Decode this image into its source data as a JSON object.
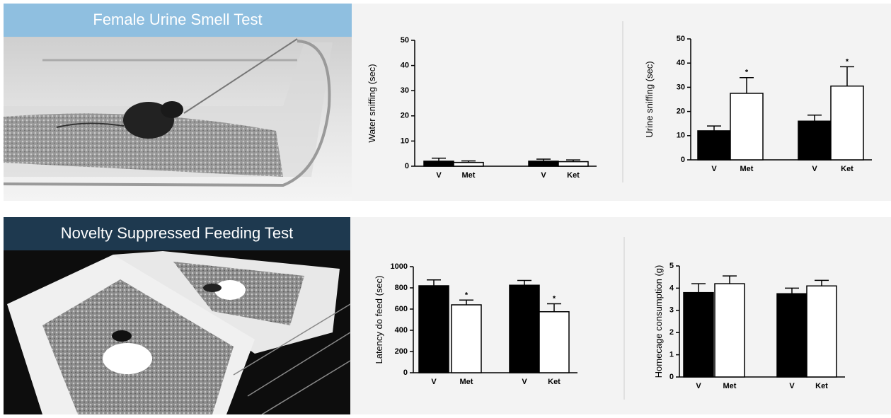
{
  "panels": [
    {
      "header": "Female Urine Smell Test"
    },
    {
      "header": "Novelty Suppressed Feeding Test"
    }
  ],
  "chart_data": [
    {
      "type": "bar",
      "ylabel": "Water sniffing (sec)",
      "categories": [
        "V",
        "Met",
        "V",
        "Ket"
      ],
      "values": [
        2,
        1.5,
        2,
        1.8
      ],
      "errors": [
        1.2,
        0.6,
        0.8,
        0.7
      ],
      "colors": [
        "#000000",
        "#ffffff",
        "#000000",
        "#ffffff"
      ],
      "significance": [
        null,
        null,
        null,
        null
      ],
      "ylim": [
        0,
        50
      ],
      "yticks": [
        0,
        10,
        20,
        30,
        40,
        50
      ]
    },
    {
      "type": "bar",
      "ylabel": "Urine sniffing (sec)",
      "categories": [
        "V",
        "Met",
        "V",
        "Ket"
      ],
      "values": [
        12,
        27.5,
        16,
        30.5
      ],
      "errors": [
        2,
        6.5,
        2.5,
        8
      ],
      "colors": [
        "#000000",
        "#ffffff",
        "#000000",
        "#ffffff"
      ],
      "significance": [
        null,
        "*",
        null,
        "*"
      ],
      "ylim": [
        0,
        50
      ],
      "yticks": [
        0,
        10,
        20,
        30,
        40,
        50
      ]
    },
    {
      "type": "bar",
      "ylabel": "Latency do feed (sec)",
      "categories": [
        "V",
        "Met",
        "V",
        "Ket"
      ],
      "values": [
        820,
        640,
        825,
        575
      ],
      "errors": [
        55,
        45,
        45,
        75
      ],
      "colors": [
        "#000000",
        "#ffffff",
        "#000000",
        "#ffffff"
      ],
      "significance": [
        null,
        "*",
        null,
        "*"
      ],
      "ylim": [
        0,
        1000
      ],
      "yticks": [
        0,
        200,
        400,
        600,
        800,
        1000
      ]
    },
    {
      "type": "bar",
      "ylabel": "Homecage consumption (g)",
      "categories": [
        "V",
        "Met",
        "V",
        "Ket"
      ],
      "values": [
        3.8,
        4.2,
        3.75,
        4.1
      ],
      "errors": [
        0.4,
        0.35,
        0.25,
        0.25
      ],
      "colors": [
        "#000000",
        "#ffffff",
        "#000000",
        "#ffffff"
      ],
      "significance": [
        null,
        null,
        null,
        null
      ],
      "ylim": [
        0,
        5
      ],
      "yticks": [
        0,
        1,
        2,
        3,
        4,
        5
      ]
    }
  ]
}
